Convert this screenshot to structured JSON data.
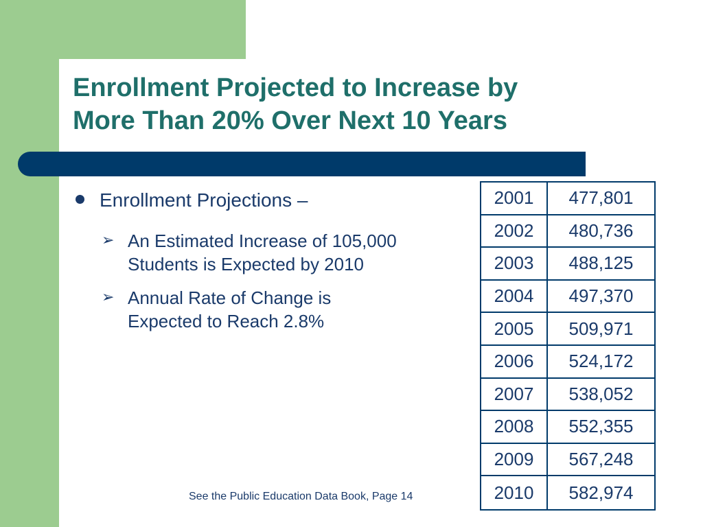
{
  "slide": {
    "title_lines": [
      "Enrollment Projected to Increase by",
      "More Than 20% Over Next 10 Years"
    ],
    "bullet": "Enrollment Projections –",
    "sub_bullets": [
      {
        "lines": [
          "An Estimated Increase of 105,000",
          "Students is Expected by 2010"
        ]
      },
      {
        "lines": [
          "Annual Rate of Change is",
          "Expected to Reach 2.8%"
        ]
      }
    ],
    "footnote": "See the Public Education Data Book, Page 14"
  },
  "table": {
    "rows": [
      {
        "year": "2001",
        "value": "477,801"
      },
      {
        "year": "2002",
        "value": "480,736"
      },
      {
        "year": "2003",
        "value": "488,125"
      },
      {
        "year": "2004",
        "value": "497,370"
      },
      {
        "year": "2005",
        "value": "509,971"
      },
      {
        "year": "2006",
        "value": "524,172"
      },
      {
        "year": "2007",
        "value": "538,052"
      },
      {
        "year": "2008",
        "value": "552,355"
      },
      {
        "year": "2009",
        "value": "567,248"
      },
      {
        "year": "2010",
        "value": "582,974"
      }
    ]
  },
  "icons": {
    "bullet": "bullet-dot-icon",
    "sub_bullet": "arrow-bullet-icon"
  },
  "colors": {
    "title": "#1f6f6a",
    "accent_bar": "#003a6a",
    "green_frame": "#9ccc90",
    "text": "#1a3a6a"
  }
}
